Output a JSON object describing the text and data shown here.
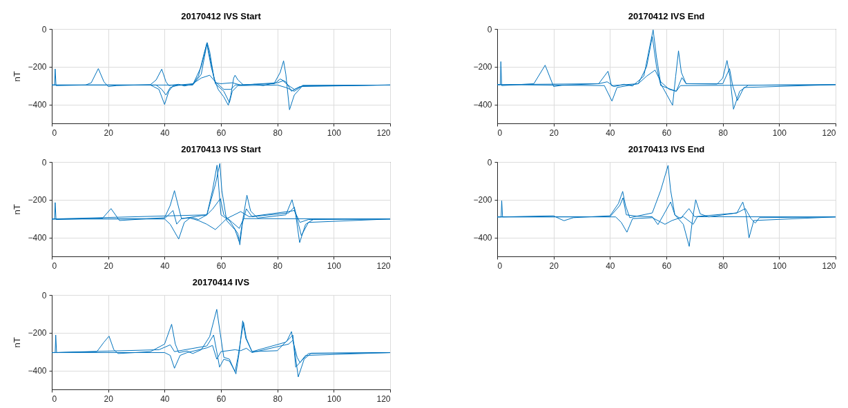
{
  "chart_data": [
    {
      "type": "line",
      "title": "20170412 IVS Start",
      "ylabel": "nT",
      "xlim": [
        0,
        120
      ],
      "ylim": [
        -500,
        0
      ],
      "xticks": [
        0,
        20,
        40,
        60,
        80,
        100,
        120
      ],
      "yticks": [
        -400,
        -200,
        0
      ],
      "grid": true,
      "series": [
        {
          "color": "#0072bd",
          "x": [
            0,
            1,
            1.2,
            1.5,
            12,
            14,
            16.5,
            18.5,
            20,
            23,
            35,
            37,
            39,
            40.5,
            41.5,
            45,
            47,
            50,
            52,
            54,
            55.1,
            56,
            57.5,
            59,
            61,
            62.6,
            63.5,
            64.5,
            65,
            66,
            68,
            72,
            75,
            79,
            81,
            82.2,
            83,
            84.3,
            86,
            89,
            120
          ],
          "values": [
            -297,
            -297,
            -212,
            -300,
            -297,
            -285,
            -210,
            -280,
            -305,
            -300,
            -295,
            -270,
            -213,
            -280,
            -300,
            -293,
            -302,
            -293,
            -250,
            -130,
            -72,
            -120,
            -260,
            -320,
            -360,
            -404,
            -350,
            -260,
            -245,
            -270,
            -297,
            -293,
            -300,
            -285,
            -230,
            -169,
            -240,
            -428,
            -350,
            -300,
            -297
          ]
        },
        {
          "color": "#0072bd",
          "x": [
            0,
            35,
            38,
            40,
            41.5,
            43,
            50,
            53,
            55,
            56.5,
            58,
            61,
            63,
            64,
            66,
            80,
            83,
            86,
            89,
            120
          ],
          "values": [
            -297,
            -297,
            -320,
            -400,
            -330,
            -300,
            -295,
            -200,
            -75,
            -180,
            -290,
            -330,
            -390,
            -330,
            -300,
            -297,
            -310,
            -330,
            -300,
            -297
          ]
        },
        {
          "color": "#0072bd",
          "x": [
            0,
            37,
            39,
            40.5,
            42,
            45,
            50,
            53,
            56,
            58,
            61,
            63.5,
            65,
            79,
            81,
            83,
            85,
            88,
            120
          ],
          "values": [
            -297,
            -297,
            -320,
            -350,
            -310,
            -297,
            -290,
            -260,
            -245,
            -280,
            -320,
            -320,
            -297,
            -290,
            -265,
            -280,
            -330,
            -305,
            -297
          ]
        },
        {
          "color": "#0072bd",
          "x": [
            0,
            50,
            53,
            55,
            56.5,
            58,
            60,
            64,
            67,
            80,
            82,
            84,
            86,
            89,
            120
          ],
          "values": [
            -297,
            -297,
            -240,
            -80,
            -200,
            -285,
            -290,
            -285,
            -297,
            -285,
            -275,
            -300,
            -320,
            -300,
            -297
          ]
        }
      ]
    },
    {
      "type": "line",
      "title": "20170412 IVS End",
      "xlim": [
        0,
        120
      ],
      "ylim": [
        -500,
        0
      ],
      "xticks": [
        0,
        20,
        40,
        60,
        80,
        100,
        120
      ],
      "yticks": [
        -400,
        -200,
        0
      ],
      "grid": true,
      "series": [
        {
          "color": "#0072bd",
          "x": [
            0,
            1.1,
            1.3,
            1.6,
            13,
            17,
            20,
            23,
            36,
            39.3,
            40.5,
            41.5,
            45,
            48,
            52,
            54,
            55.3,
            56.5,
            58,
            62.2,
            63.3,
            64.3,
            65.3,
            67,
            78,
            80,
            81.5,
            82.5,
            83.8,
            86,
            89,
            120
          ],
          "values": [
            -295,
            -295,
            -173,
            -300,
            -290,
            -192,
            -305,
            -298,
            -290,
            -224,
            -300,
            -305,
            -293,
            -302,
            -250,
            -100,
            -5,
            -150,
            -290,
            -404,
            -250,
            -116,
            -230,
            -290,
            -292,
            -260,
            -167,
            -250,
            -425,
            -330,
            -298,
            -295
          ]
        },
        {
          "color": "#0072bd",
          "x": [
            0,
            38,
            40.7,
            42.5,
            50,
            53,
            55,
            56.5,
            58,
            63.5,
            65.5,
            67,
            80,
            82.4,
            83.5,
            85.2,
            87.5,
            120
          ],
          "values": [
            -295,
            -300,
            -382,
            -310,
            -290,
            -200,
            -40,
            -200,
            -300,
            -330,
            -258,
            -290,
            -290,
            -210,
            -300,
            -379,
            -310,
            -295
          ]
        },
        {
          "color": "#0072bd",
          "x": [
            0,
            36,
            39,
            41,
            50,
            53,
            56,
            58,
            61,
            63.5,
            65,
            120
          ],
          "values": [
            -295,
            -290,
            -280,
            -300,
            -290,
            -250,
            -218,
            -280,
            -320,
            -330,
            -300,
            -295
          ]
        }
      ]
    },
    {
      "type": "line",
      "title": "20170413 IVS Start",
      "ylabel": "nT",
      "xlim": [
        0,
        120
      ],
      "ylim": [
        -500,
        0
      ],
      "xticks": [
        0,
        20,
        40,
        60,
        80,
        100,
        120
      ],
      "yticks": [
        -400,
        -200,
        0
      ],
      "grid": true,
      "series": [
        {
          "color": "#0072bd",
          "x": [
            0,
            1,
            1.2,
            1.5,
            18,
            21,
            24,
            40,
            42,
            43.5,
            44.8,
            46,
            50,
            52,
            55,
            57,
            58.6,
            59.3,
            60,
            63,
            66,
            66.7,
            67.8,
            69.2,
            70.5,
            73,
            83,
            85.2,
            86.5,
            87.9,
            90,
            93,
            120
          ],
          "values": [
            -302,
            -302,
            -215,
            -305,
            -298,
            -247,
            -310,
            -295,
            -230,
            -152,
            -230,
            -300,
            -295,
            -305,
            -280,
            -150,
            -17,
            -150,
            -280,
            -310,
            -380,
            -439,
            -300,
            -176,
            -260,
            -297,
            -280,
            -200,
            -280,
            -427,
            -330,
            -302,
            -302
          ]
        },
        {
          "color": "#0072bd",
          "x": [
            0,
            40,
            43,
            44.3,
            46,
            55,
            58,
            59.6,
            60.3,
            62,
            65,
            66.5,
            67.5,
            69,
            71,
            84,
            86,
            87.5,
            88.5,
            91,
            120
          ],
          "values": [
            -302,
            -300,
            -257,
            -329,
            -300,
            -280,
            -120,
            -8,
            -150,
            -310,
            -360,
            -424,
            -330,
            -248,
            -290,
            -270,
            -239,
            -330,
            -390,
            -320,
            -302
          ]
        },
        {
          "color": "#0072bd",
          "x": [
            0,
            40,
            42,
            45,
            47,
            49,
            52,
            55,
            58,
            60,
            62,
            67,
            70,
            85,
            86,
            88,
            91,
            120
          ],
          "values": [
            -302,
            -302,
            -330,
            -408,
            -320,
            -297,
            -310,
            -330,
            -358,
            -330,
            -300,
            -263,
            -290,
            -260,
            -257,
            -320,
            -305,
            -302
          ]
        },
        {
          "color": "#0072bd",
          "x": [
            0,
            55,
            57,
            59.8,
            61,
            64,
            66.5,
            68,
            120
          ],
          "values": [
            -302,
            -280,
            -250,
            -194,
            -280,
            -320,
            -352,
            -300,
            -302
          ]
        }
      ]
    },
    {
      "type": "line",
      "title": "20170413 IVS End",
      "xlim": [
        0,
        120
      ],
      "ylim": [
        -500,
        0
      ],
      "xticks": [
        0,
        20,
        40,
        60,
        80,
        100,
        120
      ],
      "yticks": [
        -400,
        -200,
        0
      ],
      "grid": true,
      "series": [
        {
          "color": "#0072bd",
          "x": [
            0,
            1.4,
            1.6,
            1.9,
            20,
            22,
            23.7,
            27,
            40,
            43,
            44.5,
            45.5,
            47,
            55,
            58,
            60.6,
            61.5,
            63,
            66,
            68.1,
            69.3,
            70.4,
            72,
            75,
            85,
            87.1,
            88.3,
            89.3,
            91,
            120
          ],
          "values": [
            -291,
            -291,
            -205,
            -291,
            -285,
            -300,
            -311,
            -295,
            -285,
            -220,
            -156,
            -230,
            -295,
            -270,
            -150,
            -18,
            -150,
            -280,
            -330,
            -447,
            -300,
            -200,
            -275,
            -291,
            -270,
            -212,
            -280,
            -402,
            -310,
            -291
          ]
        },
        {
          "color": "#0072bd",
          "x": [
            0,
            40,
            43.5,
            44.6,
            45.8,
            50,
            55,
            57,
            59,
            61.5,
            63,
            65,
            68,
            70,
            85,
            88,
            90,
            91.5,
            93,
            120
          ],
          "values": [
            -291,
            -290,
            -230,
            -190,
            -280,
            -288,
            -290,
            -332,
            -280,
            -212,
            -280,
            -300,
            -247,
            -290,
            -270,
            -247,
            -300,
            -324,
            -295,
            -291
          ]
        },
        {
          "color": "#0072bd",
          "x": [
            0,
            42,
            44,
            46,
            48,
            55,
            59.5,
            62,
            66,
            69.5,
            71,
            120
          ],
          "values": [
            -291,
            -291,
            -320,
            -372,
            -300,
            -295,
            -330,
            -310,
            -290,
            -330,
            -290,
            -291
          ]
        }
      ]
    },
    {
      "type": "line",
      "title": "20170414 IVS",
      "ylabel": "nT",
      "xlim": [
        0,
        120
      ],
      "ylim": [
        -500,
        0
      ],
      "xticks": [
        0,
        20,
        40,
        60,
        80,
        100,
        120
      ],
      "yticks": [
        -400,
        -200,
        0
      ],
      "grid": true,
      "series": [
        {
          "color": "#0072bd",
          "x": [
            0,
            1.2,
            1.4,
            1.7,
            16,
            18.5,
            20.3,
            22,
            23.5,
            35,
            40,
            42.5,
            43.8,
            45,
            48,
            50,
            53,
            56,
            58.5,
            59.7,
            61,
            63,
            65.3,
            66.5,
            67.7,
            68.8,
            71,
            80,
            83.5,
            85,
            86,
            87.4,
            89.5,
            92,
            120
          ],
          "values": [
            -305,
            -305,
            -212,
            -305,
            -300,
            -250,
            -218,
            -290,
            -310,
            -300,
            -260,
            -155,
            -260,
            -305,
            -297,
            -310,
            -290,
            -220,
            -76,
            -200,
            -330,
            -340,
            -418,
            -300,
            -137,
            -230,
            -300,
            -295,
            -240,
            -194,
            -280,
            -434,
            -340,
            -308,
            -305
          ]
        },
        {
          "color": "#0072bd",
          "x": [
            0,
            38,
            42,
            43.5,
            55,
            57.4,
            58.5,
            59.5,
            61,
            63,
            65,
            66,
            68,
            69,
            71,
            83,
            85.5,
            86.5,
            88,
            91,
            120
          ],
          "values": [
            -305,
            -290,
            -264,
            -300,
            -270,
            -212,
            -300,
            -382,
            -340,
            -350,
            -406,
            -330,
            -145,
            -230,
            -300,
            -250,
            -212,
            -382,
            -358,
            -310,
            -305
          ]
        },
        {
          "color": "#0072bd",
          "x": [
            0,
            40,
            42,
            43.5,
            45.5,
            48,
            55,
            57,
            58.5,
            60,
            65,
            67,
            69,
            71,
            84,
            85.5,
            87,
            88,
            90,
            120
          ],
          "values": [
            -305,
            -305,
            -320,
            -388,
            -320,
            -305,
            -280,
            -267,
            -340,
            -300,
            -290,
            -295,
            -282,
            -305,
            -260,
            -240,
            -330,
            -358,
            -320,
            -305
          ]
        }
      ]
    }
  ]
}
